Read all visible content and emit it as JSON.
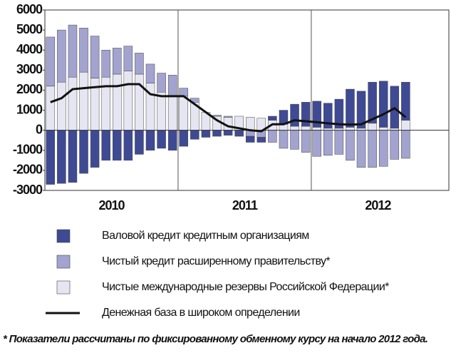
{
  "chart_data": {
    "type": "bar",
    "stacked": true,
    "categories": [
      null,
      null,
      null,
      null,
      null,
      null,
      null,
      null,
      null,
      null,
      null,
      null,
      null,
      null,
      null,
      null,
      null,
      null,
      null,
      null,
      null,
      null,
      null,
      null,
      null,
      null,
      null,
      null,
      null,
      null,
      null,
      null,
      null
    ],
    "groups": [
      "2010",
      "2011",
      "2012"
    ],
    "ylim": [
      -3000,
      6000
    ],
    "yticks": [
      -3000,
      -2000,
      -1000,
      0,
      1000,
      2000,
      3000,
      4000,
      5000,
      6000
    ],
    "series": [
      {
        "name": "Чистые международные резервы Российской Федерации*",
        "color": "#e6e6f2",
        "values": [
          2200,
          2400,
          2650,
          2900,
          2600,
          2650,
          2800,
          2950,
          2800,
          2350,
          1900,
          1700,
          1700,
          1400,
          900,
          700,
          650,
          700,
          650,
          600,
          500,
          300,
          200,
          200,
          150,
          100,
          100,
          150,
          100,
          350,
          150,
          100,
          500
        ]
      },
      {
        "name": "Чистый кредит расширенному  правительству*",
        "color": "#a3a3d0",
        "values": [
          2450,
          2600,
          2600,
          2200,
          2100,
          1350,
          1300,
          1250,
          1050,
          950,
          950,
          1050,
          400,
          200,
          0,
          50,
          50,
          0,
          -300,
          -350,
          -600,
          -900,
          -950,
          -1100,
          -1300,
          -1250,
          -1200,
          -1500,
          -1850,
          -1850,
          -1800,
          -1450,
          -1400
        ]
      },
      {
        "name": "Валовой кредит кредитным организациям",
        "color": "#3f4a94",
        "values": [
          -2700,
          -2650,
          -2600,
          -2150,
          -1850,
          -1500,
          -1500,
          -1500,
          -1200,
          -1000,
          -900,
          -1000,
          -800,
          -450,
          -350,
          -300,
          -250,
          -300,
          -300,
          -250,
          200,
          700,
          1100,
          1200,
          1300,
          1250,
          1450,
          1900,
          1850,
          2050,
          2300,
          2100,
          1900
        ]
      },
      {
        "name": "Денежная база в широком определении",
        "color": "#111111",
        "type": "line",
        "values": [
          1400,
          1600,
          2050,
          2100,
          2150,
          2200,
          2200,
          2300,
          2300,
          1800,
          1700,
          1700,
          1700,
          1300,
          900,
          500,
          200,
          100,
          0,
          -50,
          300,
          300,
          500,
          450,
          400,
          350,
          300,
          280,
          300,
          550,
          800,
          1100,
          650
        ]
      }
    ],
    "legend_order": [
      2,
      1,
      0,
      3
    ],
    "footnote": "* Показатели рассчитаны по фиксированному обменному курсу на начало 2012 года."
  }
}
